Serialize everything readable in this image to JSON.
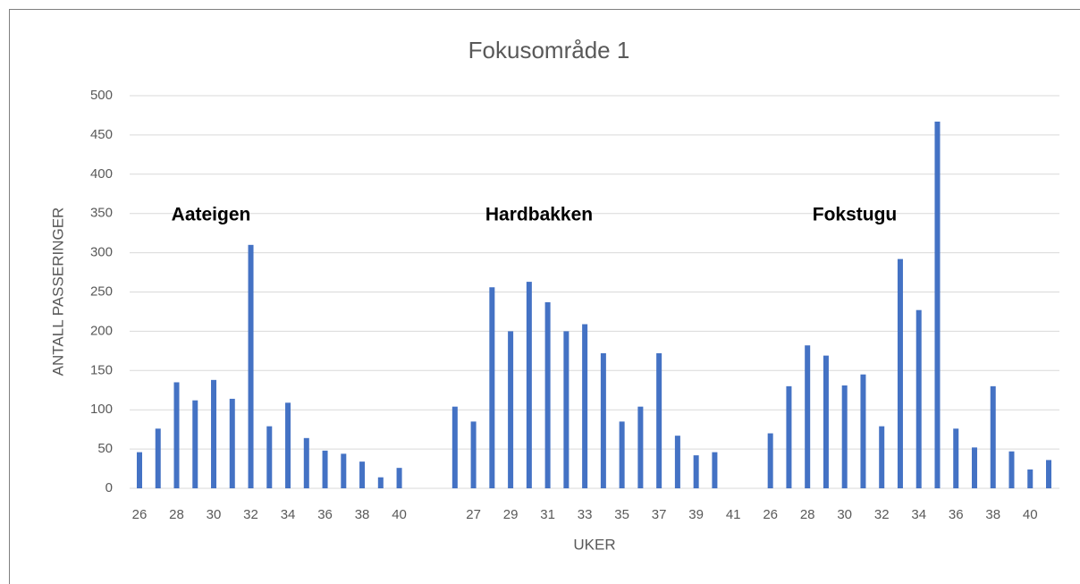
{
  "chart_data": {
    "type": "bar",
    "title": "Fokusområde 1",
    "y_label": "ANTALL PASSERINGER",
    "x_label": "UKER",
    "annotations": [
      "Aateigen",
      "Hardbakken",
      "Fokstugu"
    ],
    "categories": [
      "26",
      null,
      "28",
      null,
      "30",
      null,
      "32",
      null,
      "34",
      null,
      "36",
      null,
      "38",
      null,
      "40",
      null,
      null,
      null,
      "27",
      null,
      "29",
      null,
      "31",
      null,
      "33",
      null,
      "35",
      null,
      "37",
      null,
      "39",
      null,
      "41",
      null,
      "26",
      null,
      "28",
      null,
      "30",
      null,
      "32",
      null,
      "34",
      null,
      "36",
      null,
      "38",
      null,
      "40",
      null
    ],
    "values": [
      46,
      76,
      135,
      112,
      138,
      114,
      310,
      79,
      109,
      64,
      48,
      44,
      34,
      14,
      26,
      null,
      null,
      104,
      85,
      256,
      200,
      263,
      237,
      200,
      209,
      172,
      85,
      104,
      172,
      67,
      42,
      46,
      null,
      null,
      70,
      130,
      182,
      169,
      131,
      145,
      79,
      292,
      227,
      467,
      76,
      52,
      130,
      47,
      24,
      36
    ],
    "color": "#4472c4",
    "ylim": [
      0,
      500
    ],
    "yticks": [
      0,
      50,
      100,
      150,
      200,
      250,
      300,
      350,
      400,
      450,
      500
    ],
    "grid": true
  }
}
